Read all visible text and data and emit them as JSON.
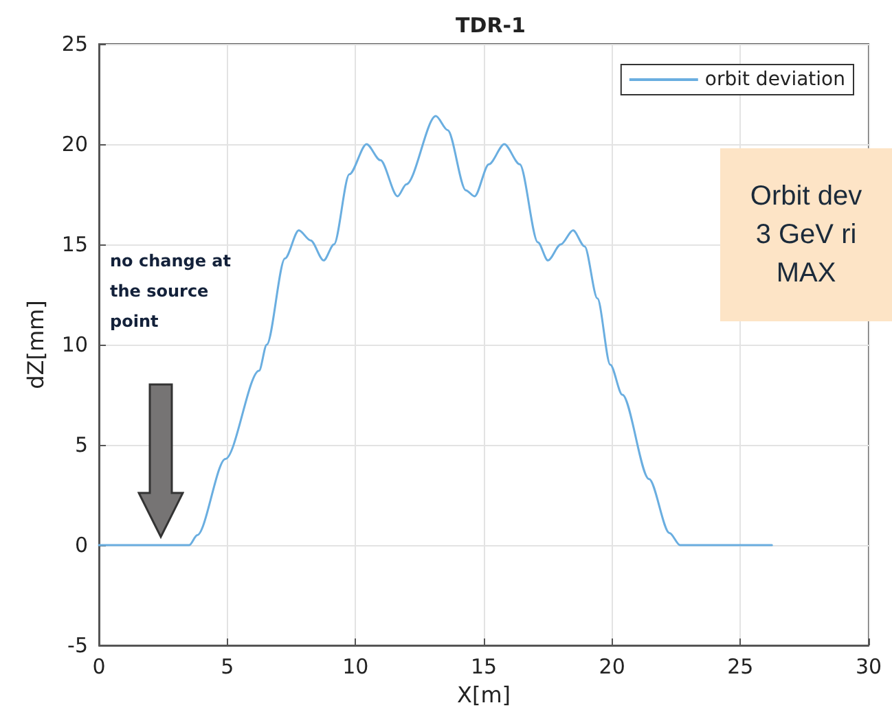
{
  "chart_data": {
    "type": "line",
    "title": "TDR-1",
    "xlabel": "X[m]",
    "ylabel": "dZ[mm]",
    "xlim": [
      0,
      30
    ],
    "xticks": [
      0,
      5,
      10,
      15,
      20,
      25,
      30
    ],
    "ylim": [
      -5,
      25
    ],
    "yticks": [
      -5,
      0,
      5,
      10,
      15,
      20,
      25
    ],
    "grid": true,
    "legend": "top right",
    "marker": "none",
    "line_style": "solid",
    "series": [
      {
        "name": "orbit deviation",
        "color": "#6aaee0",
        "x": [
          0,
          3.52,
          3.83,
          4.93,
          6.24,
          6.54,
          7.25,
          7.79,
          8.25,
          8.76,
          9.16,
          9.76,
          10.43,
          10.97,
          11.64,
          11.98,
          13.13,
          13.59,
          14.3,
          14.64,
          15.2,
          15.8,
          16.4,
          17.11,
          17.5,
          18.0,
          18.48,
          18.93,
          19.43,
          19.93,
          20.4,
          21.44,
          22.24,
          22.65,
          26.23
        ],
        "values": [
          0,
          0,
          0.5,
          4.3,
          8.7,
          10,
          14.3,
          15.7,
          15.2,
          14.2,
          15,
          18.5,
          20,
          19.2,
          17.4,
          18,
          21.4,
          20.7,
          17.7,
          17.4,
          19,
          20,
          19,
          15.1,
          14.2,
          15,
          15.7,
          14.9,
          12.3,
          9,
          7.5,
          3.3,
          0.6,
          0,
          0
        ]
      }
    ],
    "annotations": [
      "no change at the source point",
      "Orbit dev\n3 GeV ri\nMAX"
    ]
  }
}
